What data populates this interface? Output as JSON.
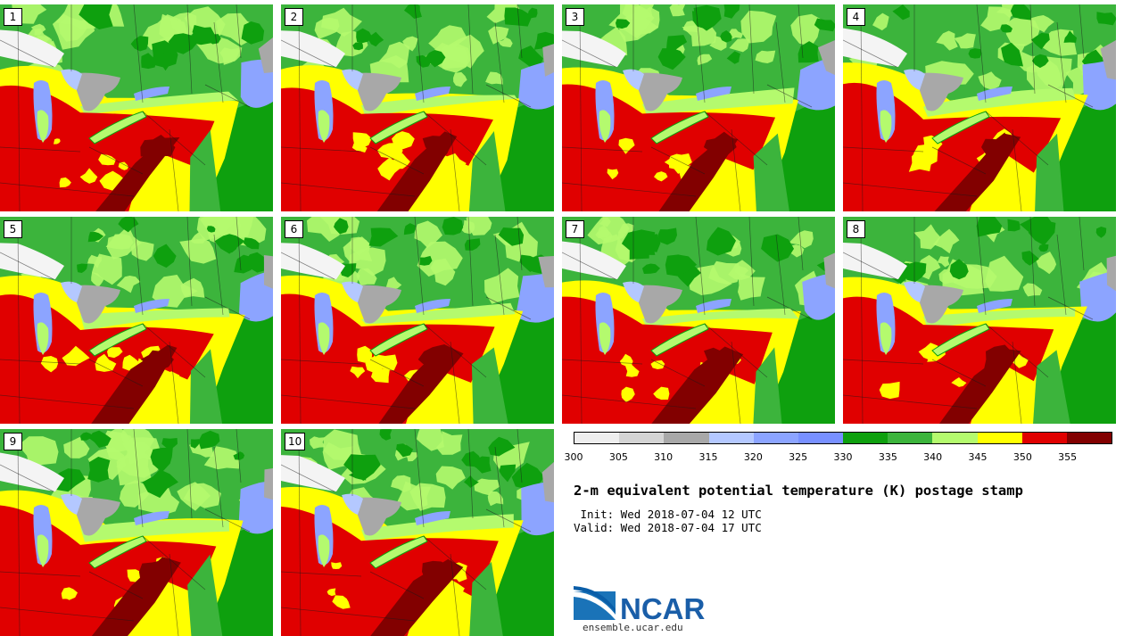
{
  "panels": [
    {
      "label": "1"
    },
    {
      "label": "2"
    },
    {
      "label": "3"
    },
    {
      "label": "4"
    },
    {
      "label": "5"
    },
    {
      "label": "6"
    },
    {
      "label": "7"
    },
    {
      "label": "8"
    },
    {
      "label": "9"
    },
    {
      "label": "10"
    }
  ],
  "colorbar": {
    "colors": [
      "#eeeeee",
      "#d4d4d4",
      "#a8a8a8",
      "#b4c8ff",
      "#8ca4ff",
      "#7890ff",
      "#0ea00e",
      "#3cb43c",
      "#b4fa6e",
      "#ffff00",
      "#e00000",
      "#820000"
    ],
    "ticks": [
      "300",
      "305",
      "310",
      "315",
      "320",
      "325",
      "330",
      "335",
      "340",
      "345",
      "350",
      "355"
    ]
  },
  "title": "2-m equivalent potential temperature (K) postage stamp",
  "init_line": " Init: Wed 2018-07-04 12 UTC",
  "valid_line": "Valid: Wed 2018-07-04 17 UTC",
  "logo": {
    "text": "NCAR",
    "url": "ensemble.ucar.edu"
  }
}
